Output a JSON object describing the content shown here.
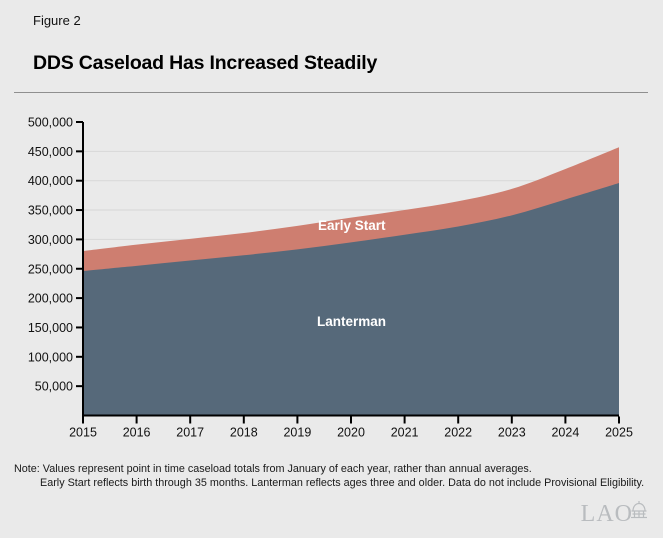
{
  "figure": {
    "label": "Figure 2",
    "title": "DDS Caseload Has Increased Steadily"
  },
  "chart_data": {
    "type": "area",
    "stacked": true,
    "title": "DDS Caseload Has Increased Steadily",
    "x": [
      2015,
      2016,
      2017,
      2018,
      2019,
      2020,
      2021,
      2022,
      2023,
      2024,
      2025
    ],
    "series": [
      {
        "name": "Lanterman",
        "color": "#56697a",
        "values": [
          246000,
          255000,
          264000,
          273000,
          283000,
          295000,
          308000,
          322000,
          341000,
          368000,
          396000
        ]
      },
      {
        "name": "Early Start",
        "color": "#ce7e70",
        "values": [
          34000,
          36000,
          37000,
          38000,
          40000,
          42000,
          42000,
          43000,
          45000,
          52000,
          61000
        ]
      }
    ],
    "stacked_totals": [
      280000,
      291000,
      301000,
      311000,
      323000,
      337000,
      350000,
      365000,
      386000,
      420000,
      457000
    ],
    "ylim": [
      0,
      500000
    ],
    "ytick_step": 50000,
    "ytick_labels": [
      "50,000",
      "100,000",
      "150,000",
      "200,000",
      "250,000",
      "300,000",
      "350,000",
      "400,000",
      "450,000",
      "500,000"
    ],
    "xtick_labels": [
      "2015",
      "2016",
      "2017",
      "2018",
      "2019",
      "2020",
      "2021",
      "2022",
      "2023",
      "2024",
      "2025"
    ],
    "grid": "horizontal",
    "legend_position": "labels-inside-areas"
  },
  "note": {
    "line1": "Note: Values represent point in time caseload totals from January of each year, rather than annual averages.",
    "line2": "Early Start reflects birth through 35 months. Lanterman reflects ages three and older. Data do not include Provisional Eligibility."
  },
  "logo": {
    "text": "LAO"
  },
  "colors": {
    "background": "#eaeaea",
    "lanterman_area": "#56697a",
    "early_start_area": "#ce7e70",
    "gridline": "#d7d7d7",
    "axis": "#000000",
    "tick_label": "#111111",
    "logo": "#b9bcbf"
  }
}
